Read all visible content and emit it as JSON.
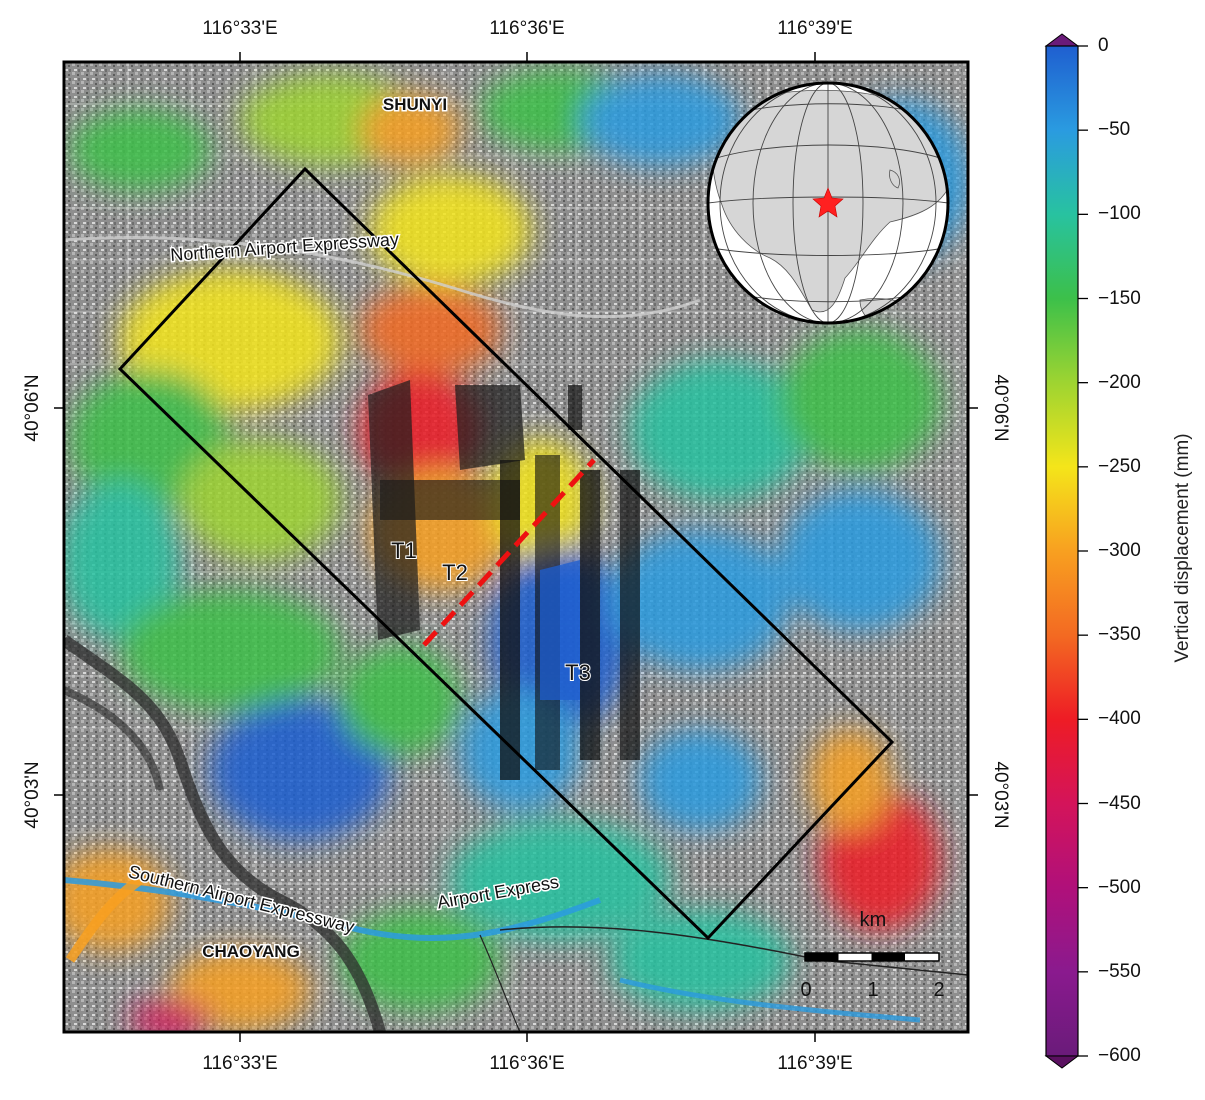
{
  "map": {
    "top_ticks": [
      "116°33'E",
      "116°36'E",
      "116°39'E"
    ],
    "bottom_ticks": [
      "116°33'E",
      "116°36'E",
      "116°39'E"
    ],
    "left_ticks": [
      "40°06'N",
      "40°03'N"
    ],
    "right_ticks": [
      "40°06'N",
      "40°03'N"
    ],
    "place_labels": {
      "shunyi": "SHUNYI",
      "chaoyang": "CHAOYANG",
      "northern_expressway": "Northern Airport Expressway",
      "southern_expressway": "Southern Airport Expressway",
      "airport_express": "Airport Express",
      "t1": "T1",
      "t2": "T2",
      "t3": "T3"
    },
    "scale_bar": {
      "unit": "km",
      "labels": [
        "0",
        "1",
        "2"
      ]
    },
    "inset": {
      "type": "globe",
      "marker": "red-star",
      "marker_color": "#ff2020"
    },
    "colors": {
      "frame": "#000000",
      "profile_line": "#ee1111",
      "background_gray": "#8a8a8a"
    }
  },
  "colorbar": {
    "title": "Vertical displacement (mm)",
    "ticks": [
      "0",
      "−50",
      "−100",
      "−150",
      "−200",
      "−250",
      "−300",
      "−350",
      "−400",
      "−450",
      "−500",
      "−550",
      "−600"
    ],
    "range": [
      -600,
      0
    ],
    "stops": [
      {
        "value": 0,
        "color": "#1f5fd0"
      },
      {
        "value": -50,
        "color": "#2a9be0"
      },
      {
        "value": -100,
        "color": "#28c2a0"
      },
      {
        "value": -150,
        "color": "#3cc04a"
      },
      {
        "value": -200,
        "color": "#9ed431"
      },
      {
        "value": -250,
        "color": "#f4e51a"
      },
      {
        "value": -300,
        "color": "#f8a020"
      },
      {
        "value": -350,
        "color": "#f36a22"
      },
      {
        "value": -400,
        "color": "#ee1c25"
      },
      {
        "value": -450,
        "color": "#d4145a"
      },
      {
        "value": -500,
        "color": "#b0107a"
      },
      {
        "value": -550,
        "color": "#8a1a8e"
      },
      {
        "value": -600,
        "color": "#6a1b7a"
      }
    ]
  }
}
